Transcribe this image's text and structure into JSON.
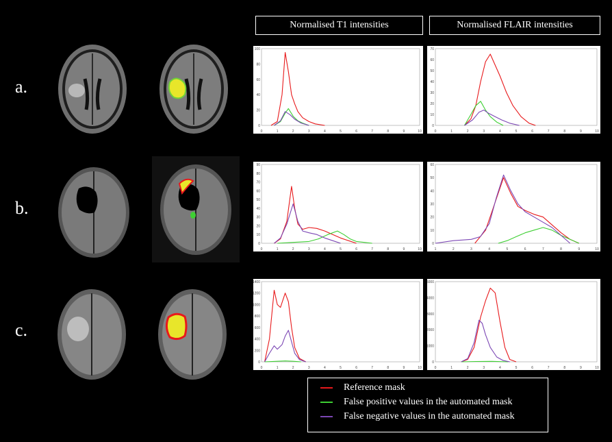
{
  "headers": {
    "t1": "Normalised T1 intensities",
    "flair": "Normalised FLAIR intensities"
  },
  "row_labels": [
    "a.",
    "b.",
    "c."
  ],
  "legend": [
    {
      "label": "Reference mask",
      "color": "#e8191b"
    },
    {
      "label": "False positive values in the automated mask",
      "color": "#3ecf33"
    },
    {
      "label": "False negative values in the automated mask",
      "color": "#7b46b4"
    }
  ],
  "chart_data": [
    {
      "type": "line",
      "panel": "a.",
      "channel": "T1",
      "xlim": [
        0,
        10
      ],
      "ylim": [
        0,
        100
      ],
      "xticks": [
        "0",
        "1",
        "2",
        "3",
        "4",
        "5",
        "6",
        "7",
        "8",
        "9",
        "10"
      ],
      "yticks": [
        "0",
        "20",
        "40",
        "60",
        "80",
        "100"
      ],
      "series": [
        {
          "color": "#e8191b",
          "x": [
            0.6,
            1.0,
            1.3,
            1.5,
            1.7,
            1.9,
            2.1,
            2.3,
            2.6,
            3.0,
            3.4,
            4.0
          ],
          "y": [
            0,
            5,
            40,
            95,
            70,
            40,
            28,
            18,
            10,
            5,
            2,
            0
          ]
        },
        {
          "color": "#3ecf33",
          "x": [
            0.8,
            1.2,
            1.5,
            1.7,
            2.0,
            2.3,
            2.6,
            3.0
          ],
          "y": [
            0,
            5,
            16,
            22,
            12,
            6,
            3,
            0
          ]
        },
        {
          "color": "#7b46b4",
          "x": [
            0.8,
            1.2,
            1.5,
            1.8,
            2.1,
            2.5,
            3.0
          ],
          "y": [
            0,
            6,
            18,
            14,
            8,
            3,
            0
          ]
        }
      ]
    },
    {
      "type": "line",
      "panel": "a.",
      "channel": "FLAIR",
      "xlim": [
        0,
        10
      ],
      "ylim": [
        0,
        70
      ],
      "xticks": [
        "0",
        "1",
        "2",
        "3",
        "4",
        "5",
        "6",
        "7",
        "8",
        "9",
        "10"
      ],
      "yticks": [
        "0",
        "10",
        "20",
        "30",
        "40",
        "50",
        "60",
        "70"
      ],
      "series": [
        {
          "color": "#e8191b",
          "x": [
            1.8,
            2.2,
            2.5,
            2.8,
            3.1,
            3.4,
            3.7,
            4.0,
            4.4,
            4.8,
            5.3,
            5.8,
            6.2
          ],
          "y": [
            0,
            6,
            18,
            40,
            58,
            65,
            55,
            45,
            30,
            18,
            8,
            2,
            0
          ]
        },
        {
          "color": "#3ecf33",
          "x": [
            1.8,
            2.2,
            2.5,
            2.8,
            3.1,
            3.4,
            3.8,
            4.2
          ],
          "y": [
            0,
            10,
            18,
            22,
            14,
            8,
            3,
            0
          ]
        },
        {
          "color": "#7b46b4",
          "x": [
            1.8,
            2.3,
            2.7,
            3.0,
            3.3,
            3.7,
            4.1,
            4.6,
            5.2
          ],
          "y": [
            0,
            5,
            12,
            14,
            11,
            8,
            5,
            2,
            0
          ]
        }
      ]
    },
    {
      "type": "line",
      "panel": "b.",
      "channel": "T1",
      "xlim": [
        0,
        10
      ],
      "ylim": [
        0,
        90
      ],
      "xticks": [
        "0",
        "1",
        "2",
        "3",
        "4",
        "5",
        "6",
        "7",
        "8",
        "9",
        "10"
      ],
      "yticks": [
        "0",
        "10",
        "20",
        "30",
        "40",
        "50",
        "60",
        "70",
        "80",
        "90"
      ],
      "series": [
        {
          "color": "#e8191b",
          "x": [
            0.8,
            1.2,
            1.6,
            1.9,
            2.1,
            2.3,
            2.6,
            3.0,
            3.5,
            4.0,
            4.5,
            5.0,
            5.5,
            6.0
          ],
          "y": [
            0,
            5,
            25,
            65,
            40,
            22,
            16,
            18,
            17,
            14,
            10,
            6,
            3,
            0
          ]
        },
        {
          "color": "#3ecf33",
          "x": [
            1.0,
            2.0,
            3.0,
            3.6,
            4.2,
            4.8,
            5.2,
            5.6,
            6.0,
            6.5,
            7.0
          ],
          "y": [
            0,
            1,
            2,
            5,
            10,
            14,
            10,
            5,
            2,
            1,
            0
          ]
        },
        {
          "color": "#7b46b4",
          "x": [
            0.8,
            1.2,
            1.6,
            2.0,
            2.3,
            2.6,
            3.0,
            3.5,
            4.0,
            4.5,
            5.0
          ],
          "y": [
            0,
            6,
            22,
            45,
            25,
            14,
            12,
            10,
            6,
            3,
            0
          ]
        }
      ]
    },
    {
      "type": "line",
      "panel": "b.",
      "channel": "FLAIR",
      "xlim": [
        1,
        10
      ],
      "ylim": [
        0,
        60
      ],
      "xticks": [
        "1",
        "2",
        "3",
        "4",
        "5",
        "6",
        "7",
        "8",
        "9",
        "10"
      ],
      "yticks": [
        "0",
        "10",
        "20",
        "30",
        "40",
        "50",
        "60"
      ],
      "series": [
        {
          "color": "#e8191b",
          "x": [
            3.2,
            3.8,
            4.3,
            4.8,
            5.2,
            5.6,
            6.0,
            6.5,
            7.0,
            7.5,
            8.0,
            8.5,
            9.0
          ],
          "y": [
            0,
            10,
            30,
            50,
            38,
            28,
            25,
            22,
            20,
            14,
            8,
            3,
            0
          ]
        },
        {
          "color": "#3ecf33",
          "x": [
            4.5,
            5.0,
            5.5,
            6.0,
            6.5,
            7.0,
            7.5,
            8.0,
            8.5,
            9.0
          ],
          "y": [
            0,
            2,
            5,
            8,
            10,
            12,
            10,
            6,
            3,
            0
          ]
        },
        {
          "color": "#7b46b4",
          "x": [
            1.0,
            2.0,
            3.0,
            3.5,
            4.0,
            4.4,
            4.8,
            5.2,
            5.6,
            6.0,
            6.5,
            7.0,
            7.5,
            8.0,
            8.5
          ],
          "y": [
            0,
            2,
            3,
            5,
            15,
            35,
            52,
            40,
            30,
            24,
            20,
            16,
            12,
            6,
            0
          ]
        }
      ]
    },
    {
      "type": "line",
      "panel": "c.",
      "channel": "T1",
      "xlim": [
        0,
        10
      ],
      "ylim": [
        0,
        1400
      ],
      "xticks": [
        "0",
        "1",
        "2",
        "3",
        "4",
        "5",
        "6",
        "7",
        "8",
        "9",
        "10"
      ],
      "yticks": [
        "0",
        "200",
        "400",
        "600",
        "800",
        "1000",
        "1200",
        "1400"
      ],
      "series": [
        {
          "color": "#e8191b",
          "x": [
            0.2,
            0.5,
            0.8,
            1.0,
            1.2,
            1.5,
            1.7,
            1.9,
            2.1,
            2.4,
            2.8
          ],
          "y": [
            0,
            400,
            1250,
            1000,
            950,
            1200,
            1050,
            600,
            250,
            60,
            0
          ]
        },
        {
          "color": "#3ecf33",
          "x": [
            0.2,
            1.0,
            1.5,
            2.0,
            2.5
          ],
          "y": [
            0,
            10,
            15,
            10,
            0
          ]
        },
        {
          "color": "#7b46b4",
          "x": [
            0.2,
            0.5,
            0.8,
            1.0,
            1.3,
            1.5,
            1.7,
            1.9,
            2.1,
            2.4,
            2.8
          ],
          "y": [
            0,
            150,
            280,
            220,
            300,
            450,
            550,
            350,
            150,
            40,
            0
          ]
        }
      ]
    },
    {
      "type": "line",
      "panel": "c.",
      "channel": "FLAIR",
      "xlim": [
        0,
        10
      ],
      "ylim": [
        0,
        5000
      ],
      "xticks": [
        "0",
        "1",
        "2",
        "3",
        "4",
        "5",
        "6",
        "7",
        "8",
        "9",
        "10"
      ],
      "yticks": [
        "0",
        "1000",
        "2000",
        "3000",
        "4000",
        "5000"
      ],
      "series": [
        {
          "color": "#e8191b",
          "x": [
            1.6,
            2.0,
            2.4,
            2.8,
            3.1,
            3.4,
            3.7,
            4.0,
            4.3,
            4.6,
            5.0
          ],
          "y": [
            0,
            150,
            900,
            2800,
            3800,
            4600,
            4300,
            2500,
            900,
            150,
            0
          ]
        },
        {
          "color": "#3ecf33",
          "x": [
            1.6,
            2.5,
            3.5,
            4.5
          ],
          "y": [
            0,
            20,
            30,
            0
          ]
        },
        {
          "color": "#7b46b4",
          "x": [
            1.6,
            2.0,
            2.4,
            2.7,
            2.9,
            3.1,
            3.4,
            3.8,
            4.2,
            4.6
          ],
          "y": [
            0,
            200,
            1200,
            2600,
            2400,
            1700,
            900,
            300,
            80,
            0
          ]
        }
      ]
    }
  ]
}
